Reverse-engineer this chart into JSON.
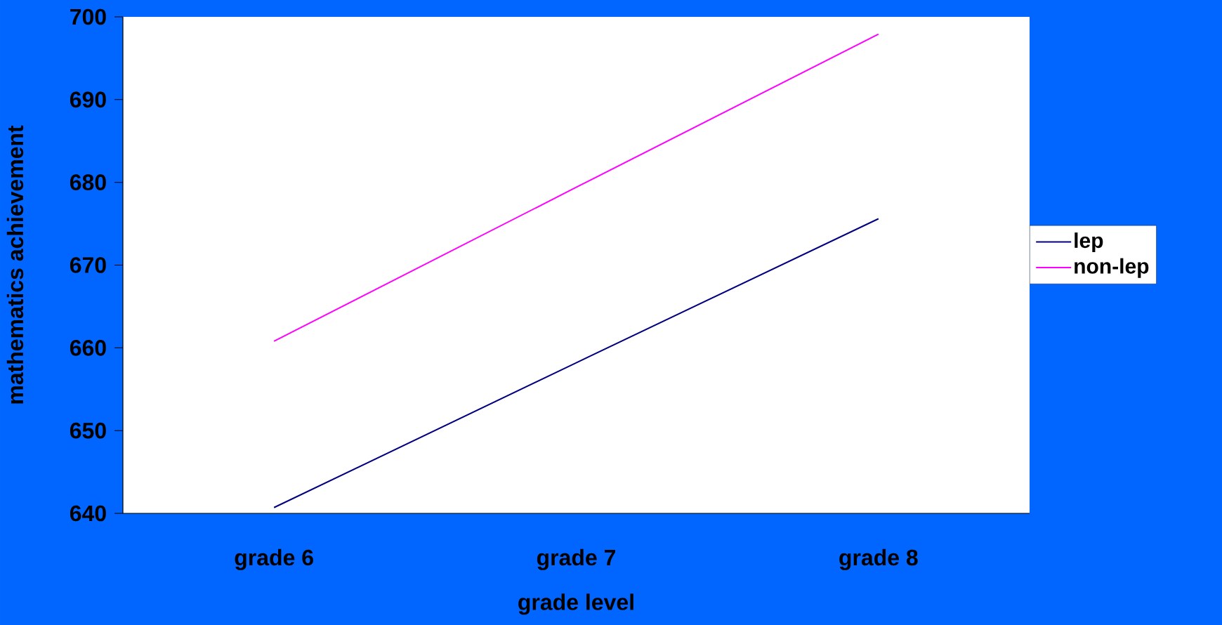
{
  "chart_data": {
    "type": "line",
    "xlabel": "grade level",
    "ylabel": "mathematics achievement",
    "categories": [
      "grade 6",
      "grade 7",
      "grade 8"
    ],
    "series": [
      {
        "name": "lep",
        "color": "#000080",
        "values": [
          640.7,
          658.2,
          675.6
        ]
      },
      {
        "name": "non-lep",
        "color": "#ff00ff",
        "values": [
          660.8,
          679.4,
          697.9
        ]
      }
    ],
    "ylim": [
      640,
      700
    ],
    "yticks": [
      640,
      650,
      660,
      670,
      680,
      690,
      700
    ],
    "grid": false,
    "legend": "right",
    "marker": "none",
    "line_style": "solid"
  }
}
